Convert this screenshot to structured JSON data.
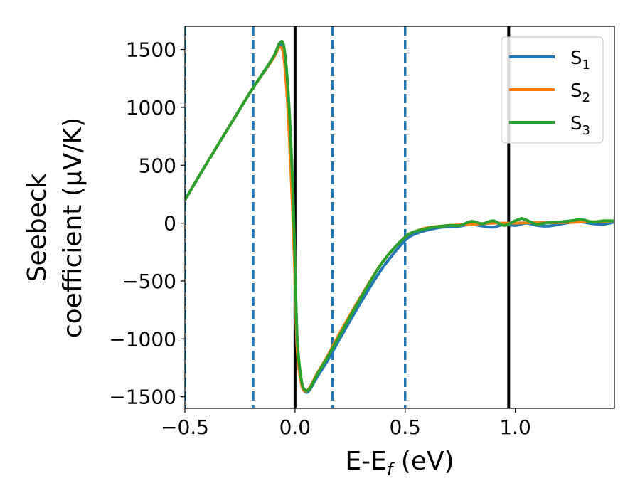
{
  "chart_data": {
    "type": "line",
    "title": "",
    "xlabel": "E-E",
    "xlabel_sub": "f",
    "xlabel_unit": " (eV)",
    "ylabel_line1": "Seebeck",
    "ylabel_line2": "coefficient  (μV/K)",
    "xlim": [
      -0.5,
      1.45
    ],
    "ylim": [
      -1600,
      1700
    ],
    "xticks": [
      -0.5,
      0.0,
      0.5,
      1.0
    ],
    "xtick_labels": [
      "−0.5",
      "0.0",
      "0.5",
      "1.0"
    ],
    "yticks": [
      -1500,
      -1000,
      -500,
      0,
      500,
      1000,
      1500
    ],
    "ytick_labels": [
      "−1500",
      "−1000",
      "−500",
      "0",
      "500",
      "1000",
      "1500"
    ],
    "grid": false,
    "legend_position": "top-right",
    "vlines": [
      {
        "x": -0.5,
        "style": "dashed",
        "color": "#1f77b4"
      },
      {
        "x": -0.19,
        "style": "dashed",
        "color": "#1f77b4"
      },
      {
        "x": 0.17,
        "style": "dashed",
        "color": "#1f77b4"
      },
      {
        "x": 0.5,
        "style": "dashed",
        "color": "#1f77b4"
      },
      {
        "x": 0.0,
        "style": "solid",
        "color": "#000000"
      },
      {
        "x": 0.97,
        "style": "solid",
        "color": "#000000"
      }
    ],
    "series": [
      {
        "name": "S",
        "sub": "1",
        "color": "#1f77b4",
        "x": [
          -0.5,
          -0.4,
          -0.3,
          -0.2,
          -0.1,
          -0.07,
          -0.05,
          -0.03,
          -0.01,
          0.0,
          0.01,
          0.03,
          0.05,
          0.07,
          0.1,
          0.15,
          0.2,
          0.3,
          0.4,
          0.5,
          0.55,
          0.6,
          0.65,
          0.7,
          0.75,
          0.8,
          0.85,
          0.9,
          0.95,
          1.0,
          1.05,
          1.1,
          1.15,
          1.2,
          1.25,
          1.3,
          1.35,
          1.4,
          1.45
        ],
        "y": [
          200,
          520,
          830,
          1140,
          1420,
          1530,
          1480,
          1000,
          200,
          -400,
          -1000,
          -1380,
          -1460,
          -1430,
          -1330,
          -1180,
          -1010,
          -680,
          -380,
          -150,
          -90,
          -60,
          -40,
          -30,
          -25,
          -10,
          -25,
          -35,
          -10,
          -20,
          0,
          -20,
          -25,
          -10,
          5,
          10,
          -5,
          -10,
          10
        ]
      },
      {
        "name": "S",
        "sub": "2",
        "color": "#ff7f0e",
        "x": [
          -0.5,
          -0.4,
          -0.3,
          -0.2,
          -0.1,
          -0.07,
          -0.05,
          -0.03,
          -0.01,
          0.0,
          0.01,
          0.03,
          0.05,
          0.07,
          0.1,
          0.15,
          0.2,
          0.3,
          0.4,
          0.5,
          0.55,
          0.6,
          0.7,
          0.8,
          0.9,
          1.0,
          1.1,
          1.2,
          1.3,
          1.4,
          1.45
        ],
        "y": [
          200,
          520,
          830,
          1140,
          1420,
          1520,
          1420,
          900,
          50,
          -500,
          -1100,
          -1400,
          -1450,
          -1410,
          -1300,
          -1140,
          -960,
          -630,
          -330,
          -120,
          -70,
          -40,
          -20,
          -10,
          0,
          0,
          5,
          5,
          10,
          15,
          20
        ]
      },
      {
        "name": "S",
        "sub": "3",
        "color": "#2ca02c",
        "x": [
          -0.5,
          -0.4,
          -0.3,
          -0.2,
          -0.1,
          -0.07,
          -0.05,
          -0.03,
          -0.01,
          0.0,
          0.01,
          0.03,
          0.05,
          0.07,
          0.1,
          0.15,
          0.2,
          0.3,
          0.4,
          0.5,
          0.55,
          0.6,
          0.65,
          0.7,
          0.75,
          0.8,
          0.85,
          0.9,
          0.95,
          1.0,
          1.03,
          1.07,
          1.1,
          1.15,
          1.2,
          1.25,
          1.3,
          1.35,
          1.4,
          1.45
        ],
        "y": [
          200,
          520,
          830,
          1140,
          1430,
          1555,
          1520,
          1100,
          300,
          -350,
          -1000,
          -1370,
          -1445,
          -1420,
          -1310,
          -1150,
          -980,
          -640,
          -330,
          -120,
          -70,
          -45,
          -30,
          -20,
          -20,
          15,
          -5,
          20,
          -20,
          20,
          40,
          10,
          -10,
          5,
          10,
          20,
          30,
          10,
          20,
          20
        ]
      }
    ]
  }
}
